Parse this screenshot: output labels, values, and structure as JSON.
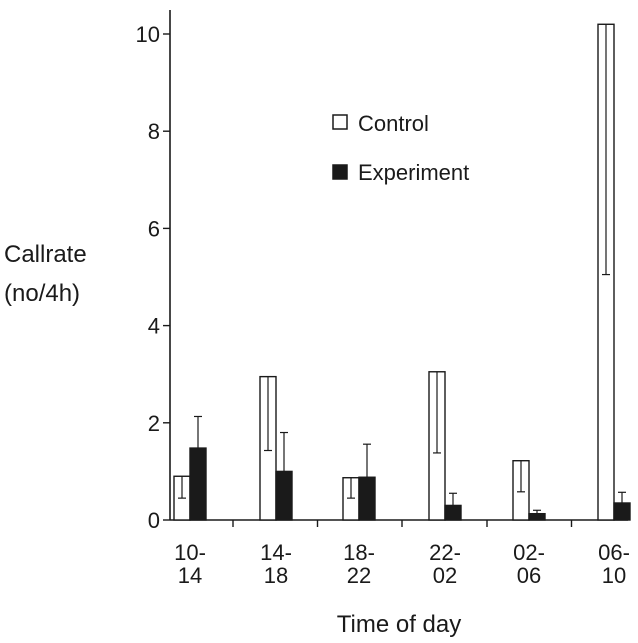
{
  "chart_data": {
    "type": "bar",
    "title": "",
    "xlabel": "Time of day",
    "ylabel": [
      "Callrate",
      "(no/4h)"
    ],
    "ylim": [
      0,
      10.5
    ],
    "yticks": [
      0,
      2,
      4,
      6,
      8,
      10
    ],
    "categories": [
      [
        "10-",
        "14"
      ],
      [
        "14-",
        "18"
      ],
      [
        "18-",
        "22"
      ],
      [
        "22-",
        "02"
      ],
      [
        "02-",
        "06"
      ],
      [
        "06-",
        "10"
      ]
    ],
    "series": [
      {
        "name": "Control",
        "fill": "#ffffff",
        "values": [
          0.9,
          2.95,
          0.87,
          3.05,
          1.22,
          10.2
        ],
        "error_low": [
          0.45,
          1.43,
          0.45,
          1.38,
          0.58,
          5.05
        ],
        "error_high": [
          0.9,
          2.95,
          0.87,
          3.05,
          1.22,
          10.2
        ]
      },
      {
        "name": "Experiment",
        "fill": "#1a1a1a",
        "values": [
          1.48,
          1.0,
          0.88,
          0.3,
          0.13,
          0.35
        ],
        "error_low": [
          1.48,
          1.0,
          0.88,
          0.3,
          0.13,
          0.35
        ],
        "error_high": [
          2.13,
          1.8,
          1.56,
          0.55,
          0.2,
          0.57
        ]
      }
    ],
    "legend": {
      "position": "top-center"
    },
    "grid": false
  }
}
